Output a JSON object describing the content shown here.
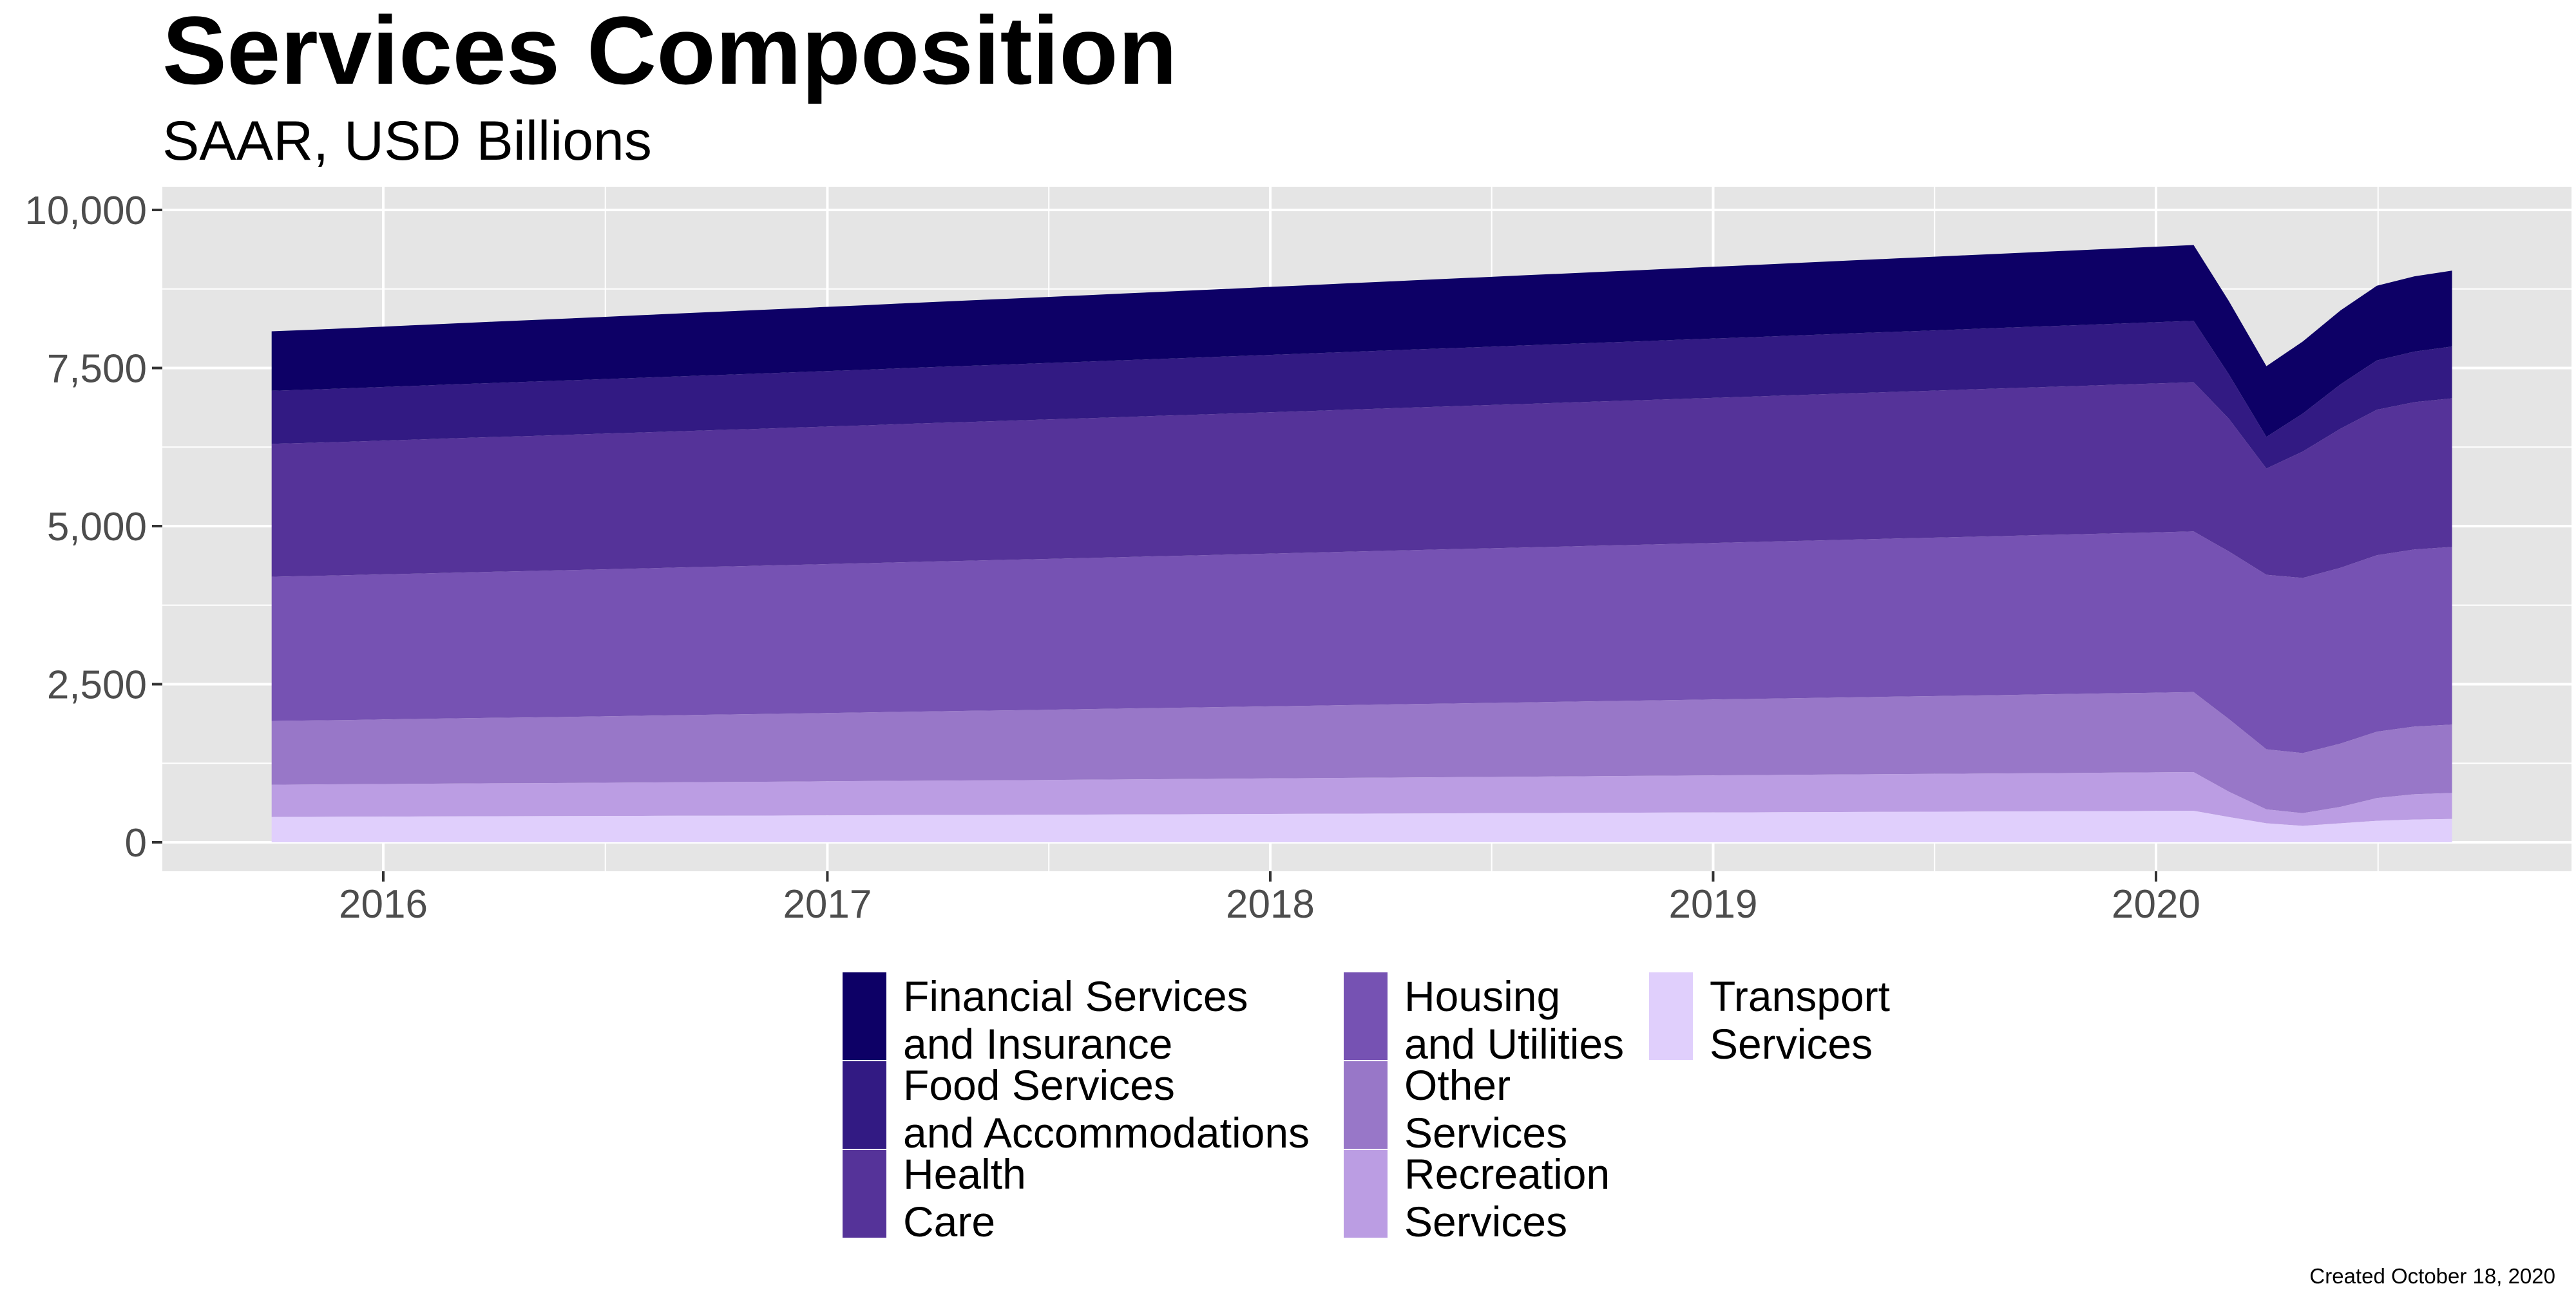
{
  "chart_data": {
    "type": "area",
    "stacked": true,
    "title": "Services Composition",
    "subtitle": "SAAR, USD Billions",
    "caption": "Created October 18, 2020",
    "xlabel": "",
    "ylabel": "",
    "x": [
      "2015-10",
      "2015-11",
      "2015-12",
      "2016-01",
      "2016-02",
      "2016-03",
      "2016-04",
      "2016-05",
      "2016-06",
      "2016-07",
      "2016-08",
      "2016-09",
      "2016-10",
      "2016-11",
      "2016-12",
      "2017-01",
      "2017-02",
      "2017-03",
      "2017-04",
      "2017-05",
      "2017-06",
      "2017-07",
      "2017-08",
      "2017-09",
      "2017-10",
      "2017-11",
      "2017-12",
      "2018-01",
      "2018-02",
      "2018-03",
      "2018-04",
      "2018-05",
      "2018-06",
      "2018-07",
      "2018-08",
      "2018-09",
      "2018-10",
      "2018-11",
      "2018-12",
      "2019-01",
      "2019-02",
      "2019-03",
      "2019-04",
      "2019-05",
      "2019-06",
      "2019-07",
      "2019-08",
      "2019-09",
      "2019-10",
      "2019-11",
      "2019-12",
      "2020-01",
      "2020-02",
      "2020-03",
      "2020-04",
      "2020-05",
      "2020-06",
      "2020-07",
      "2020-08",
      "2020-09"
    ],
    "x_ticks": [
      "2016",
      "2017",
      "2018",
      "2019",
      "2020"
    ],
    "ylim": [
      0,
      10000
    ],
    "y_ticks": [
      "0",
      "2,500",
      "5,000",
      "7,500",
      "10,000"
    ],
    "grid": true,
    "legend_position": "bottom",
    "series": [
      {
        "name": "Transport\nServices",
        "color": "#e0cffc",
        "values": [
          400,
          402,
          404,
          406,
          408,
          410,
          412,
          413,
          414,
          416,
          418,
          420,
          421,
          422,
          424,
          426,
          428,
          430,
          432,
          433,
          434,
          436,
          438,
          440,
          442,
          444,
          446,
          448,
          450,
          452,
          454,
          456,
          458,
          460,
          462,
          464,
          466,
          468,
          470,
          472,
          474,
          476,
          478,
          480,
          482,
          484,
          486,
          488,
          490,
          492,
          494,
          496,
          498,
          400,
          300,
          260,
          300,
          340,
          360,
          370
        ]
      },
      {
        "name": "Recreation\nServices",
        "color": "#bb9de3",
        "values": [
          510,
          512,
          514,
          516,
          518,
          520,
          521,
          522,
          524,
          526,
          528,
          530,
          532,
          534,
          536,
          538,
          540,
          542,
          544,
          546,
          548,
          550,
          552,
          554,
          556,
          558,
          560,
          562,
          564,
          566,
          568,
          570,
          572,
          574,
          576,
          578,
          580,
          582,
          584,
          586,
          588,
          590,
          592,
          594,
          596,
          598,
          600,
          602,
          604,
          606,
          608,
          610,
          612,
          400,
          220,
          200,
          260,
          360,
          400,
          410
        ]
      },
      {
        "name": "Other\nServices",
        "color": "#9877c8",
        "values": [
          1010,
          1012,
          1015,
          1020,
          1025,
          1030,
          1035,
          1040,
          1045,
          1050,
          1055,
          1060,
          1065,
          1070,
          1075,
          1080,
          1085,
          1090,
          1095,
          1100,
          1105,
          1110,
          1115,
          1120,
          1125,
          1130,
          1135,
          1140,
          1145,
          1150,
          1155,
          1160,
          1165,
          1170,
          1175,
          1180,
          1185,
          1190,
          1195,
          1200,
          1205,
          1210,
          1215,
          1220,
          1225,
          1230,
          1235,
          1240,
          1245,
          1250,
          1255,
          1260,
          1265,
          1150,
          950,
          950,
          1000,
          1050,
          1070,
          1080
        ]
      },
      {
        "name": "Housing\nand Utilities",
        "color": "#7652b3",
        "values": [
          2280,
          2285,
          2290,
          2295,
          2300,
          2305,
          2310,
          2315,
          2320,
          2325,
          2330,
          2335,
          2340,
          2345,
          2350,
          2355,
          2360,
          2365,
          2370,
          2375,
          2380,
          2385,
          2390,
          2395,
          2400,
          2405,
          2410,
          2415,
          2420,
          2425,
          2430,
          2435,
          2440,
          2445,
          2450,
          2455,
          2460,
          2465,
          2470,
          2475,
          2480,
          2485,
          2490,
          2495,
          2500,
          2505,
          2510,
          2515,
          2520,
          2525,
          2530,
          2535,
          2540,
          2650,
          2760,
          2770,
          2780,
          2790,
          2800,
          2810
        ]
      },
      {
        "name": "Health\nCare",
        "color": "#553399",
        "values": [
          2100,
          2105,
          2110,
          2115,
          2120,
          2125,
          2130,
          2135,
          2140,
          2145,
          2150,
          2155,
          2160,
          2165,
          2170,
          2175,
          2180,
          2185,
          2190,
          2195,
          2200,
          2205,
          2210,
          2215,
          2220,
          2225,
          2230,
          2235,
          2240,
          2245,
          2250,
          2255,
          2260,
          2265,
          2270,
          2275,
          2280,
          2285,
          2290,
          2295,
          2300,
          2305,
          2310,
          2315,
          2320,
          2325,
          2330,
          2335,
          2340,
          2345,
          2350,
          2355,
          2360,
          2100,
          1680,
          2000,
          2200,
          2300,
          2330,
          2350
        ]
      },
      {
        "name": "Food Services\nand Accommodations",
        "color": "#321a83",
        "values": [
          840,
          842,
          845,
          848,
          850,
          852,
          855,
          858,
          860,
          862,
          865,
          868,
          870,
          872,
          875,
          878,
          880,
          882,
          885,
          888,
          890,
          892,
          895,
          898,
          900,
          902,
          905,
          908,
          910,
          912,
          915,
          918,
          920,
          922,
          925,
          928,
          930,
          932,
          935,
          938,
          940,
          942,
          945,
          948,
          950,
          952,
          955,
          958,
          960,
          962,
          965,
          968,
          970,
          700,
          500,
          600,
          700,
          780,
          800,
          820
        ]
      },
      {
        "name": "Financial Services\nand Insurance",
        "color": "#0d0066",
        "values": [
          940,
          945,
          950,
          955,
          960,
          965,
          970,
          975,
          980,
          985,
          990,
          995,
          1000,
          1005,
          1010,
          1015,
          1020,
          1025,
          1030,
          1035,
          1040,
          1045,
          1050,
          1055,
          1060,
          1065,
          1070,
          1075,
          1080,
          1085,
          1090,
          1095,
          1100,
          1105,
          1110,
          1115,
          1120,
          1125,
          1130,
          1135,
          1140,
          1145,
          1150,
          1155,
          1160,
          1165,
          1170,
          1175,
          1180,
          1185,
          1190,
          1195,
          1200,
          1160,
          1120,
          1140,
          1170,
          1180,
          1190,
          1200
        ]
      }
    ],
    "legend_order": [
      6,
      5,
      4,
      3,
      2,
      1,
      0
    ]
  }
}
